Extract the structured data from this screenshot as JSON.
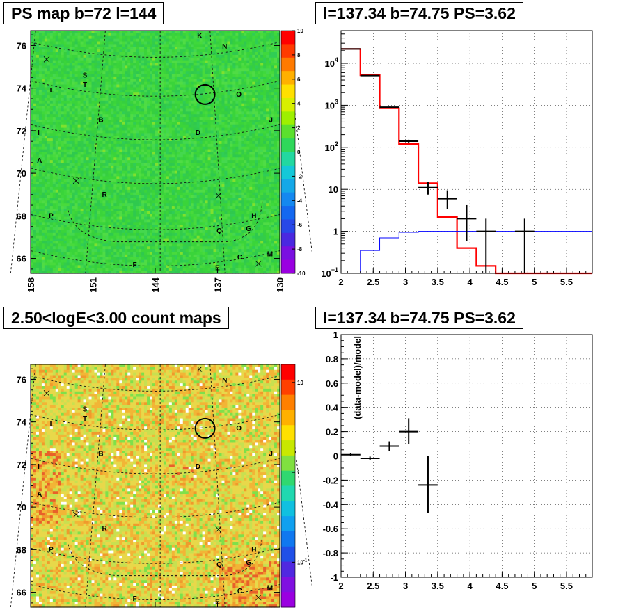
{
  "panels": {
    "top_left": {
      "title": "PS map b=72 l=144"
    },
    "top_right": {
      "title": "l=137.34 b=74.75 PS=3.62"
    },
    "bottom_left": {
      "title": "2.50<logE<3.00 count maps"
    },
    "bottom_right": {
      "title": "l=137.34 b=74.75 PS=3.62"
    }
  },
  "chart_data": [
    {
      "type": "heatmap",
      "title": "PS map b=72 l=144",
      "x_ticks": [
        "158",
        "151",
        "144",
        "137",
        "130"
      ],
      "y_ticks": [
        "76",
        "74",
        "72",
        "70",
        "68",
        "66"
      ],
      "xlim": [
        158,
        130
      ],
      "ylim": [
        65.3,
        76.7
      ],
      "colorbar": {
        "min": -10,
        "max": 10,
        "ticks": [
          "10",
          "8",
          "6",
          "4",
          "2",
          "0",
          "-2",
          "-4",
          "-6",
          "-8",
          "-10"
        ]
      },
      "dominant_color": "#3ad43a",
      "source_labels": [
        {
          "text": "K",
          "l": 139.0,
          "b": 76.35
        },
        {
          "text": "N",
          "l": 136.2,
          "b": 75.85
        },
        {
          "text": "S",
          "l": 151.9,
          "b": 74.5
        },
        {
          "text": "T",
          "l": 151.9,
          "b": 74.05
        },
        {
          "text": "L",
          "l": 155.6,
          "b": 73.8
        },
        {
          "text": "O",
          "l": 134.6,
          "b": 73.6
        },
        {
          "text": "B",
          "l": 150.1,
          "b": 72.4
        },
        {
          "text": "J",
          "l": 131.0,
          "b": 72.4
        },
        {
          "text": "D",
          "l": 139.2,
          "b": 71.8
        },
        {
          "text": "I",
          "l": 157.1,
          "b": 71.8
        },
        {
          "text": "A",
          "l": 157.0,
          "b": 70.5
        },
        {
          "text": "R",
          "l": 149.7,
          "b": 68.9
        },
        {
          "text": "H",
          "l": 132.9,
          "b": 67.9
        },
        {
          "text": "P",
          "l": 155.7,
          "b": 67.9
        },
        {
          "text": "G",
          "l": 133.5,
          "b": 67.3
        },
        {
          "text": "Q",
          "l": 136.8,
          "b": 67.2
        },
        {
          "text": "M",
          "l": 131.1,
          "b": 66.1
        },
        {
          "text": "C",
          "l": 134.5,
          "b": 65.95
        },
        {
          "text": "F",
          "l": 146.3,
          "b": 65.6
        },
        {
          "text": "E",
          "l": 137.0,
          "b": 65.45
        }
      ],
      "cross_markers": [
        {
          "l": 156.2,
          "b": 75.35
        },
        {
          "l": 152.9,
          "b": 69.65
        },
        {
          "l": 136.9,
          "b": 68.95
        },
        {
          "l": 132.4,
          "b": 65.75
        }
      ],
      "circle_marker": {
        "l": 138.4,
        "b": 73.7
      }
    },
    {
      "type": "line",
      "title": "l=137.34 b=74.75 PS=3.62",
      "xlabel": "",
      "ylabel": "",
      "xlim": [
        2.0,
        5.9
      ],
      "ylim": [
        0.1,
        60000
      ],
      "yscale": "log",
      "grid": true,
      "x_ticks": [
        "2",
        "2.5",
        "3",
        "3.5",
        "4",
        "4.5",
        "5",
        "5.5"
      ],
      "y_ticks": [
        {
          "value": 10000,
          "base": "10",
          "exp": "4"
        },
        {
          "value": 1000,
          "base": "10",
          "exp": "3"
        },
        {
          "value": 100,
          "base": "10",
          "exp": "2"
        },
        {
          "value": 10,
          "base": "10",
          "exp": ""
        },
        {
          "value": 1,
          "base": "1",
          "exp": ""
        },
        {
          "value": 0.1,
          "base": "10",
          "exp": "−1"
        }
      ],
      "series": [
        {
          "color": "#ff0000",
          "style": "step",
          "edges": [
            2.0,
            2.3,
            2.6,
            2.9,
            3.2,
            3.5,
            3.8,
            4.1,
            4.4,
            4.7,
            5.0,
            5.3,
            5.6,
            5.9
          ],
          "values": [
            22000,
            5200,
            850,
            120,
            14,
            2.2,
            0.4,
            0.15,
            0.09,
            0.09,
            0.09,
            0.09,
            0.09
          ]
        },
        {
          "color": "#0000ff",
          "style": "step",
          "edges": [
            2.0,
            2.3,
            2.6,
            2.9,
            3.2,
            3.5,
            3.8,
            4.1,
            4.4,
            4.7,
            5.0,
            5.3,
            5.6,
            5.9
          ],
          "values": [
            0.09,
            0.35,
            0.7,
            0.95,
            1.0,
            1.0,
            1.0,
            1.0,
            1.0,
            1.0,
            1.0,
            1.0,
            1.0
          ]
        },
        {
          "color": "#000000",
          "style": "errorbar",
          "points": [
            {
              "x": 2.15,
              "y": 22000,
              "xerr": 0.15,
              "ylo": 21500,
              "yhi": 22500
            },
            {
              "x": 2.45,
              "y": 5100,
              "xerr": 0.15,
              "ylo": 5000,
              "yhi": 5200
            },
            {
              "x": 2.75,
              "y": 900,
              "xerr": 0.15,
              "ylo": 870,
              "yhi": 930
            },
            {
              "x": 3.05,
              "y": 140,
              "xerr": 0.15,
              "ylo": 128,
              "yhi": 152
            },
            {
              "x": 3.35,
              "y": 11,
              "xerr": 0.15,
              "ylo": 7.5,
              "yhi": 15
            },
            {
              "x": 3.65,
              "y": 6,
              "xerr": 0.15,
              "ylo": 3.4,
              "yhi": 9.5
            },
            {
              "x": 3.95,
              "y": 2,
              "xerr": 0.15,
              "ylo": 0.6,
              "yhi": 4.2
            },
            {
              "x": 4.25,
              "y": 1,
              "xerr": 0.15,
              "ylo": 0.1,
              "yhi": 2.0
            },
            {
              "x": 4.85,
              "y": 1,
              "xerr": 0.15,
              "ylo": 0.1,
              "yhi": 2.0
            }
          ]
        }
      ]
    },
    {
      "type": "heatmap",
      "title": "2.50<logE<3.00 count maps",
      "x_ticks": [
        "158",
        "151",
        "144",
        "137",
        "130"
      ],
      "y_ticks": [
        "76",
        "74",
        "72",
        "70",
        "68",
        "66"
      ],
      "xlim": [
        158,
        130
      ],
      "ylim": [
        65.3,
        76.7
      ],
      "colorbar": {
        "scale": "log",
        "ticks": [
          "10",
          "1"
        ],
        "tick_10m1": {
          "base": "10",
          "exp": "-1"
        }
      },
      "dominant_color": "#e6d84a"
    },
    {
      "type": "scatter",
      "title": "l=137.34 b=74.75 PS=3.62",
      "xlabel": "",
      "ylabel": "(data-model)/model",
      "xlim": [
        2.0,
        5.9
      ],
      "ylim": [
        -1.0,
        1.0
      ],
      "grid": true,
      "x_ticks": [
        "2",
        "2.5",
        "3",
        "3.5",
        "4",
        "4.5",
        "5",
        "5.5"
      ],
      "y_ticks": [
        "1",
        "0.8",
        "0.6",
        "0.4",
        "0.2",
        "0",
        "-0.2",
        "-0.4",
        "-0.6",
        "-0.8",
        "-1"
      ],
      "points": [
        {
          "x": 2.15,
          "y": 0.01,
          "xerr": 0.15,
          "ylo": 0.0,
          "yhi": 0.02
        },
        {
          "x": 2.45,
          "y": -0.02,
          "xerr": 0.15,
          "ylo": -0.035,
          "yhi": -0.005
        },
        {
          "x": 2.75,
          "y": 0.08,
          "xerr": 0.15,
          "ylo": 0.04,
          "yhi": 0.12
        },
        {
          "x": 3.05,
          "y": 0.2,
          "xerr": 0.15,
          "ylo": 0.1,
          "yhi": 0.31
        },
        {
          "x": 3.35,
          "y": -0.24,
          "xerr": 0.15,
          "ylo": -0.47,
          "yhi": 0.0
        }
      ]
    }
  ]
}
